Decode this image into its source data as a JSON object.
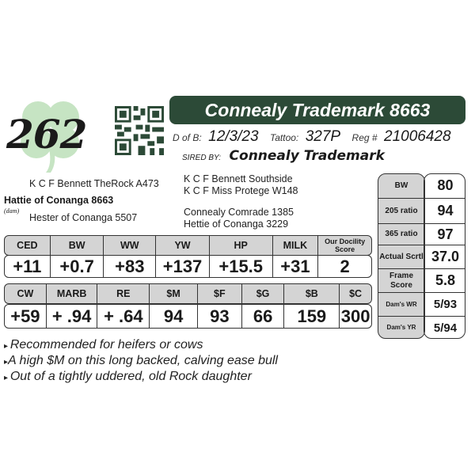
{
  "lot_number": "262",
  "title": "Connealy Trademark 8663",
  "dob_label": "D of B:",
  "dob": "12/3/23",
  "tattoo_label": "Tattoo:",
  "tattoo": "327P",
  "reg_label": "Reg #",
  "reg": "21006428",
  "sired_by_label": "SIRED BY:",
  "sire": "Connealy Trademark",
  "pedigree": {
    "dam_sire": "K C F Bennett TheRock A473",
    "dam": "Hattie of Conanga 8663",
    "dam_label": "(dam)",
    "dam_dam": "Hester of Conanga 5507",
    "sire_sire": "K C F Bennett Southside",
    "sire_dam": "K C F Miss Protege W148",
    "dam_line1": "Connealy Comrade 1385",
    "dam_line2": "Hettie of Conanga 3229"
  },
  "epd1": {
    "headers": [
      "CED",
      "BW",
      "WW",
      "YW",
      "HP",
      "MILK",
      "Our Docility Score"
    ],
    "values": [
      "+11",
      "+0.7",
      "+83",
      "+137",
      "+15.5",
      "+31",
      "2"
    ]
  },
  "epd2": {
    "headers": [
      "CW",
      "MARB",
      "RE",
      "$M",
      "$F",
      "$G",
      "$B",
      "$C"
    ],
    "values": [
      "+59",
      "+ .94",
      "+ .64",
      "94",
      "93",
      "66",
      "159",
      "300"
    ]
  },
  "side": [
    {
      "label": "BW",
      "value": "80"
    },
    {
      "label": "205 ratio",
      "value": "94"
    },
    {
      "label": "365 ratio",
      "value": "97"
    },
    {
      "label": "Actual Scrtl",
      "value": "37.0"
    },
    {
      "label": "Frame Score",
      "value": "5.8"
    },
    {
      "label": "Dam's WR",
      "value": "5/93"
    },
    {
      "label": "Dam's YR",
      "value": "5/94"
    }
  ],
  "notes": [
    "Recommended for heifers or cows",
    "A high $M on this long backed, calving ease bull",
    "Out of a tightly uddered, old Rock daughter"
  ],
  "colors": {
    "title_bg": "#2c4a37",
    "header_bg": "#d4d4d4",
    "clover": "#bfe0bd"
  }
}
